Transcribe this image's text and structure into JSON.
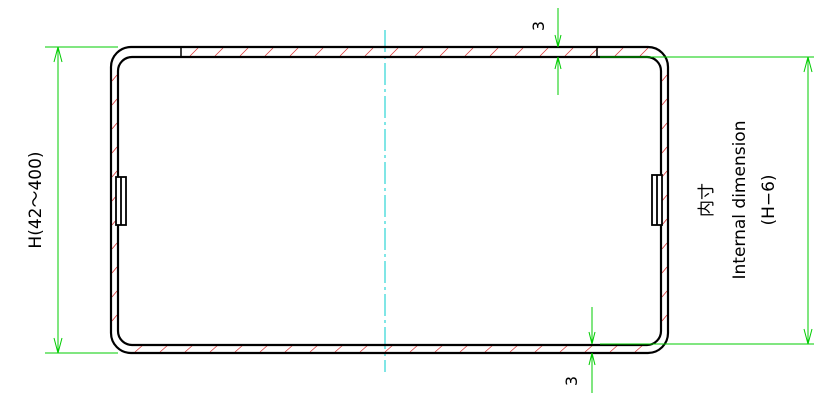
{
  "colors": {
    "outline": "#000000",
    "dimension": "#00cc00",
    "hatch": "#d93a3a",
    "centerline": "#00cccc",
    "background": "#ffffff"
  },
  "labels": {
    "overall_height": "H(42～400)",
    "internal_jp": "内寸",
    "internal_en": "Internal dimension",
    "internal_formula": "(H−6)",
    "thickness_top": "3",
    "thickness_bottom": "3"
  }
}
